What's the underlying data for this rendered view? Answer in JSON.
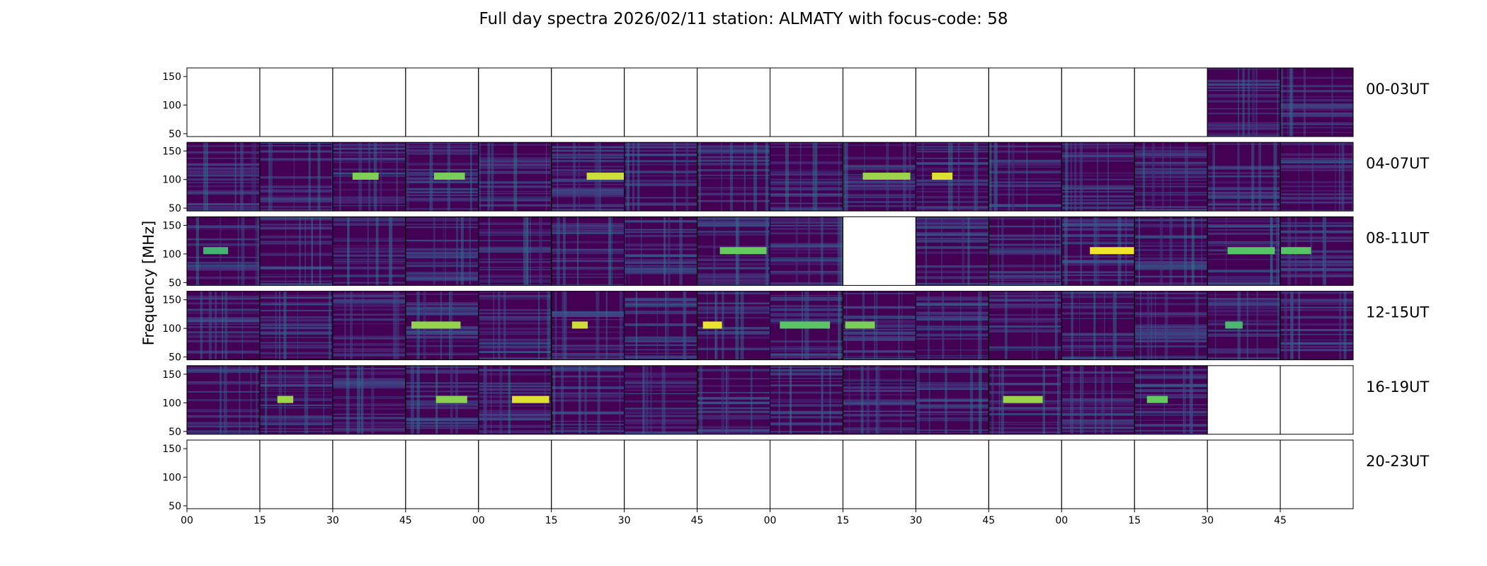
{
  "chart_data": {
    "type": "heatmap",
    "title": "Full day spectra 2026/02/11 station: ALMATY with focus-code: 58",
    "ylabel": "Frequency [MHz]",
    "xlabel": "",
    "ylim": [
      45,
      165
    ],
    "yticks": [
      50,
      100,
      150
    ],
    "ytick_labels": [
      "50",
      "100",
      "150"
    ],
    "xtick_labels": [
      "00",
      "15",
      "30",
      "45",
      "00",
      "15",
      "30",
      "45",
      "00",
      "15",
      "30",
      "45",
      "00",
      "15",
      "30",
      "45"
    ],
    "colormap": "viridis",
    "panels_per_row": 16,
    "panel_minutes": 15,
    "rows": [
      {
        "label": "00-03UT",
        "data_panels": [
          14,
          15
        ]
      },
      {
        "label": "04-07UT",
        "data_panels": [
          0,
          1,
          2,
          3,
          4,
          5,
          6,
          7,
          8,
          9,
          10,
          11,
          12,
          13,
          14,
          15
        ]
      },
      {
        "label": "08-11UT",
        "data_panels": [
          0,
          1,
          2,
          3,
          4,
          5,
          6,
          7,
          8,
          10,
          11,
          12,
          13,
          14,
          15
        ]
      },
      {
        "label": "12-15UT",
        "data_panels": [
          0,
          1,
          2,
          3,
          4,
          5,
          6,
          7,
          8,
          9,
          10,
          11,
          12,
          13,
          14,
          15
        ]
      },
      {
        "label": "16-19UT",
        "data_panels": [
          0,
          1,
          2,
          3,
          4,
          5,
          6,
          7,
          8,
          9,
          10,
          11,
          12,
          13
        ]
      },
      {
        "label": "20-23UT",
        "data_panels": []
      }
    ]
  },
  "colors": {
    "viridis_dark": "#440154",
    "viridis_blue": "#3b528b",
    "viridis_teal": "#21918c",
    "viridis_green": "#5ec962",
    "viridis_yellow": "#fde725",
    "axis": "#000000",
    "background": "#ffffff"
  }
}
